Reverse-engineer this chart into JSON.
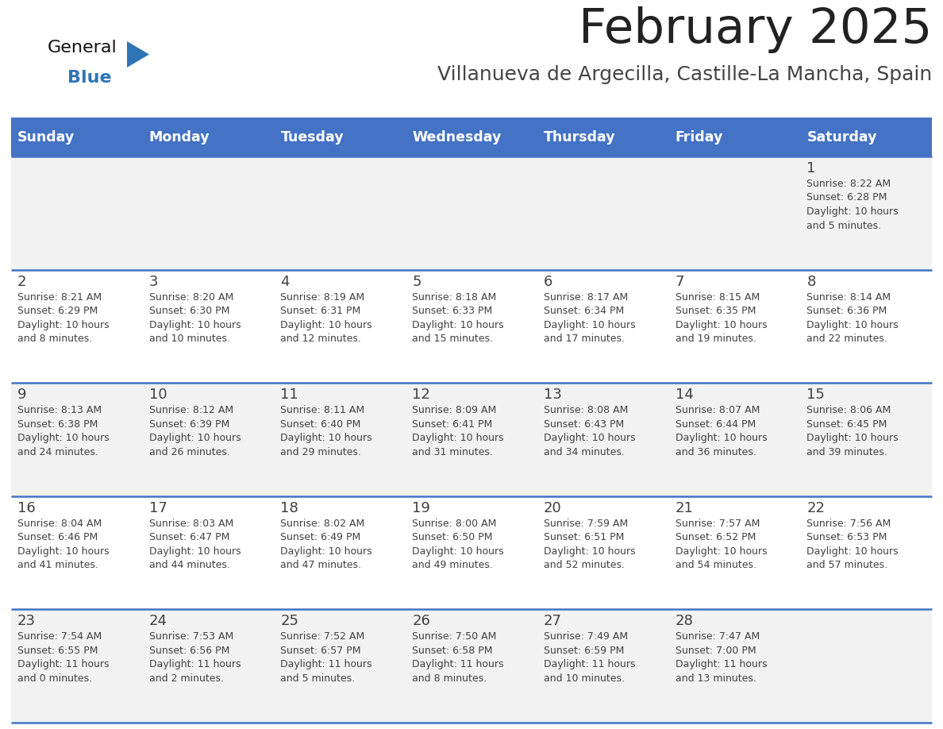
{
  "title": "February 2025",
  "subtitle": "Villanueva de Argecilla, Castille-La Mancha, Spain",
  "days_of_week": [
    "Sunday",
    "Monday",
    "Tuesday",
    "Wednesday",
    "Thursday",
    "Friday",
    "Saturday"
  ],
  "header_bg": "#4472C4",
  "header_text": "#FFFFFF",
  "cell_bg_even": "#F2F2F2",
  "cell_bg_odd": "#FFFFFF",
  "border_color": "#4472C4",
  "text_color": "#404040",
  "title_color": "#222222",
  "subtitle_color": "#444444",
  "logo_general_color": "#111111",
  "logo_blue_color": "#2E75B6",
  "weeks": [
    [
      {
        "day": null,
        "info": null
      },
      {
        "day": null,
        "info": null
      },
      {
        "day": null,
        "info": null
      },
      {
        "day": null,
        "info": null
      },
      {
        "day": null,
        "info": null
      },
      {
        "day": null,
        "info": null
      },
      {
        "day": 1,
        "info": "Sunrise: 8:22 AM\nSunset: 6:28 PM\nDaylight: 10 hours\nand 5 minutes."
      }
    ],
    [
      {
        "day": 2,
        "info": "Sunrise: 8:21 AM\nSunset: 6:29 PM\nDaylight: 10 hours\nand 8 minutes."
      },
      {
        "day": 3,
        "info": "Sunrise: 8:20 AM\nSunset: 6:30 PM\nDaylight: 10 hours\nand 10 minutes."
      },
      {
        "day": 4,
        "info": "Sunrise: 8:19 AM\nSunset: 6:31 PM\nDaylight: 10 hours\nand 12 minutes."
      },
      {
        "day": 5,
        "info": "Sunrise: 8:18 AM\nSunset: 6:33 PM\nDaylight: 10 hours\nand 15 minutes."
      },
      {
        "day": 6,
        "info": "Sunrise: 8:17 AM\nSunset: 6:34 PM\nDaylight: 10 hours\nand 17 minutes."
      },
      {
        "day": 7,
        "info": "Sunrise: 8:15 AM\nSunset: 6:35 PM\nDaylight: 10 hours\nand 19 minutes."
      },
      {
        "day": 8,
        "info": "Sunrise: 8:14 AM\nSunset: 6:36 PM\nDaylight: 10 hours\nand 22 minutes."
      }
    ],
    [
      {
        "day": 9,
        "info": "Sunrise: 8:13 AM\nSunset: 6:38 PM\nDaylight: 10 hours\nand 24 minutes."
      },
      {
        "day": 10,
        "info": "Sunrise: 8:12 AM\nSunset: 6:39 PM\nDaylight: 10 hours\nand 26 minutes."
      },
      {
        "day": 11,
        "info": "Sunrise: 8:11 AM\nSunset: 6:40 PM\nDaylight: 10 hours\nand 29 minutes."
      },
      {
        "day": 12,
        "info": "Sunrise: 8:09 AM\nSunset: 6:41 PM\nDaylight: 10 hours\nand 31 minutes."
      },
      {
        "day": 13,
        "info": "Sunrise: 8:08 AM\nSunset: 6:43 PM\nDaylight: 10 hours\nand 34 minutes."
      },
      {
        "day": 14,
        "info": "Sunrise: 8:07 AM\nSunset: 6:44 PM\nDaylight: 10 hours\nand 36 minutes."
      },
      {
        "day": 15,
        "info": "Sunrise: 8:06 AM\nSunset: 6:45 PM\nDaylight: 10 hours\nand 39 minutes."
      }
    ],
    [
      {
        "day": 16,
        "info": "Sunrise: 8:04 AM\nSunset: 6:46 PM\nDaylight: 10 hours\nand 41 minutes."
      },
      {
        "day": 17,
        "info": "Sunrise: 8:03 AM\nSunset: 6:47 PM\nDaylight: 10 hours\nand 44 minutes."
      },
      {
        "day": 18,
        "info": "Sunrise: 8:02 AM\nSunset: 6:49 PM\nDaylight: 10 hours\nand 47 minutes."
      },
      {
        "day": 19,
        "info": "Sunrise: 8:00 AM\nSunset: 6:50 PM\nDaylight: 10 hours\nand 49 minutes."
      },
      {
        "day": 20,
        "info": "Sunrise: 7:59 AM\nSunset: 6:51 PM\nDaylight: 10 hours\nand 52 minutes."
      },
      {
        "day": 21,
        "info": "Sunrise: 7:57 AM\nSunset: 6:52 PM\nDaylight: 10 hours\nand 54 minutes."
      },
      {
        "day": 22,
        "info": "Sunrise: 7:56 AM\nSunset: 6:53 PM\nDaylight: 10 hours\nand 57 minutes."
      }
    ],
    [
      {
        "day": 23,
        "info": "Sunrise: 7:54 AM\nSunset: 6:55 PM\nDaylight: 11 hours\nand 0 minutes."
      },
      {
        "day": 24,
        "info": "Sunrise: 7:53 AM\nSunset: 6:56 PM\nDaylight: 11 hours\nand 2 minutes."
      },
      {
        "day": 25,
        "info": "Sunrise: 7:52 AM\nSunset: 6:57 PM\nDaylight: 11 hours\nand 5 minutes."
      },
      {
        "day": 26,
        "info": "Sunrise: 7:50 AM\nSunset: 6:58 PM\nDaylight: 11 hours\nand 8 minutes."
      },
      {
        "day": 27,
        "info": "Sunrise: 7:49 AM\nSunset: 6:59 PM\nDaylight: 11 hours\nand 10 minutes."
      },
      {
        "day": 28,
        "info": "Sunrise: 7:47 AM\nSunset: 7:00 PM\nDaylight: 11 hours\nand 13 minutes."
      },
      {
        "day": null,
        "info": null
      }
    ]
  ]
}
